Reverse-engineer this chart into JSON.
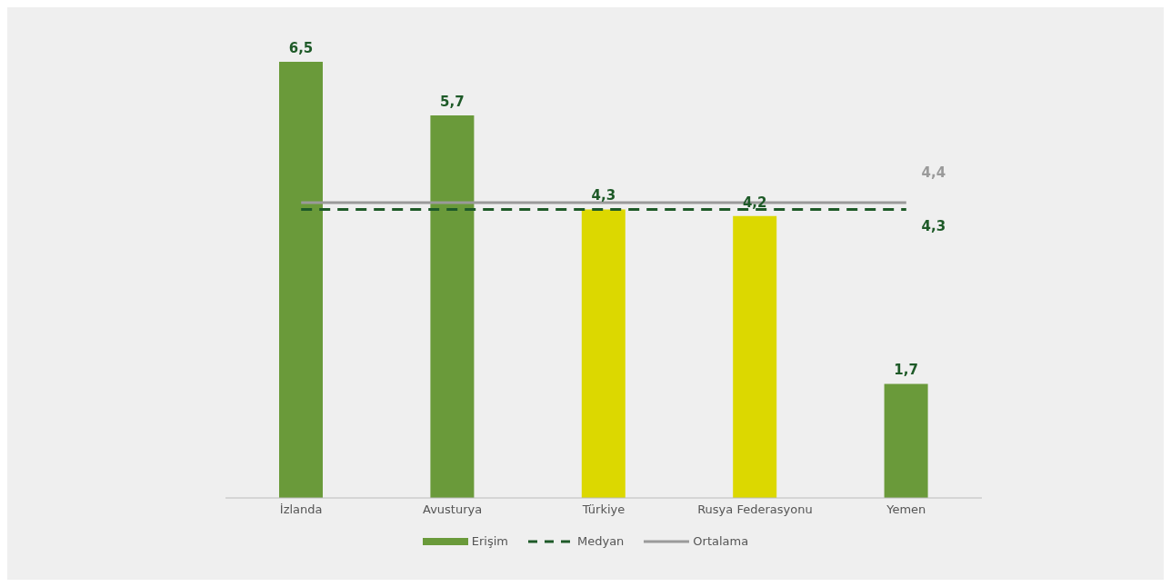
{
  "chart_data": {
    "type": "bar",
    "categories": [
      "İzlanda",
      "Avusturya",
      "Türkiye",
      "Rusya Federasyonu",
      "Yemen"
    ],
    "legend": "bottom",
    "series": [
      {
        "name": "Erişim",
        "color": "#6a9a3a",
        "colors": [
          "#6a9a3a",
          "#6a9a3a",
          "#dcd800",
          "#dcd800",
          "#6a9a3a"
        ],
        "values": [
          6.5,
          5.7,
          4.3,
          4.2,
          1.7
        ],
        "value_labels": [
          "6,5",
          "5,7",
          "4,3",
          "4,2",
          "1,7"
        ]
      },
      {
        "name": "Medyan",
        "type": "line",
        "color": "#1e5a28",
        "line_style": "dashed",
        "values": [
          4.3,
          4.3,
          4.3,
          4.3,
          4.3
        ],
        "value_labels": [
          null,
          null,
          null,
          null,
          "4,3"
        ]
      },
      {
        "name": "Ortalama",
        "type": "line",
        "color": "#9a9a9a",
        "line_style": "solid",
        "values": [
          4.4,
          4.4,
          4.4,
          4.4,
          4.4
        ],
        "value_labels": [
          null,
          null,
          null,
          null,
          "4,4"
        ]
      }
    ]
  }
}
